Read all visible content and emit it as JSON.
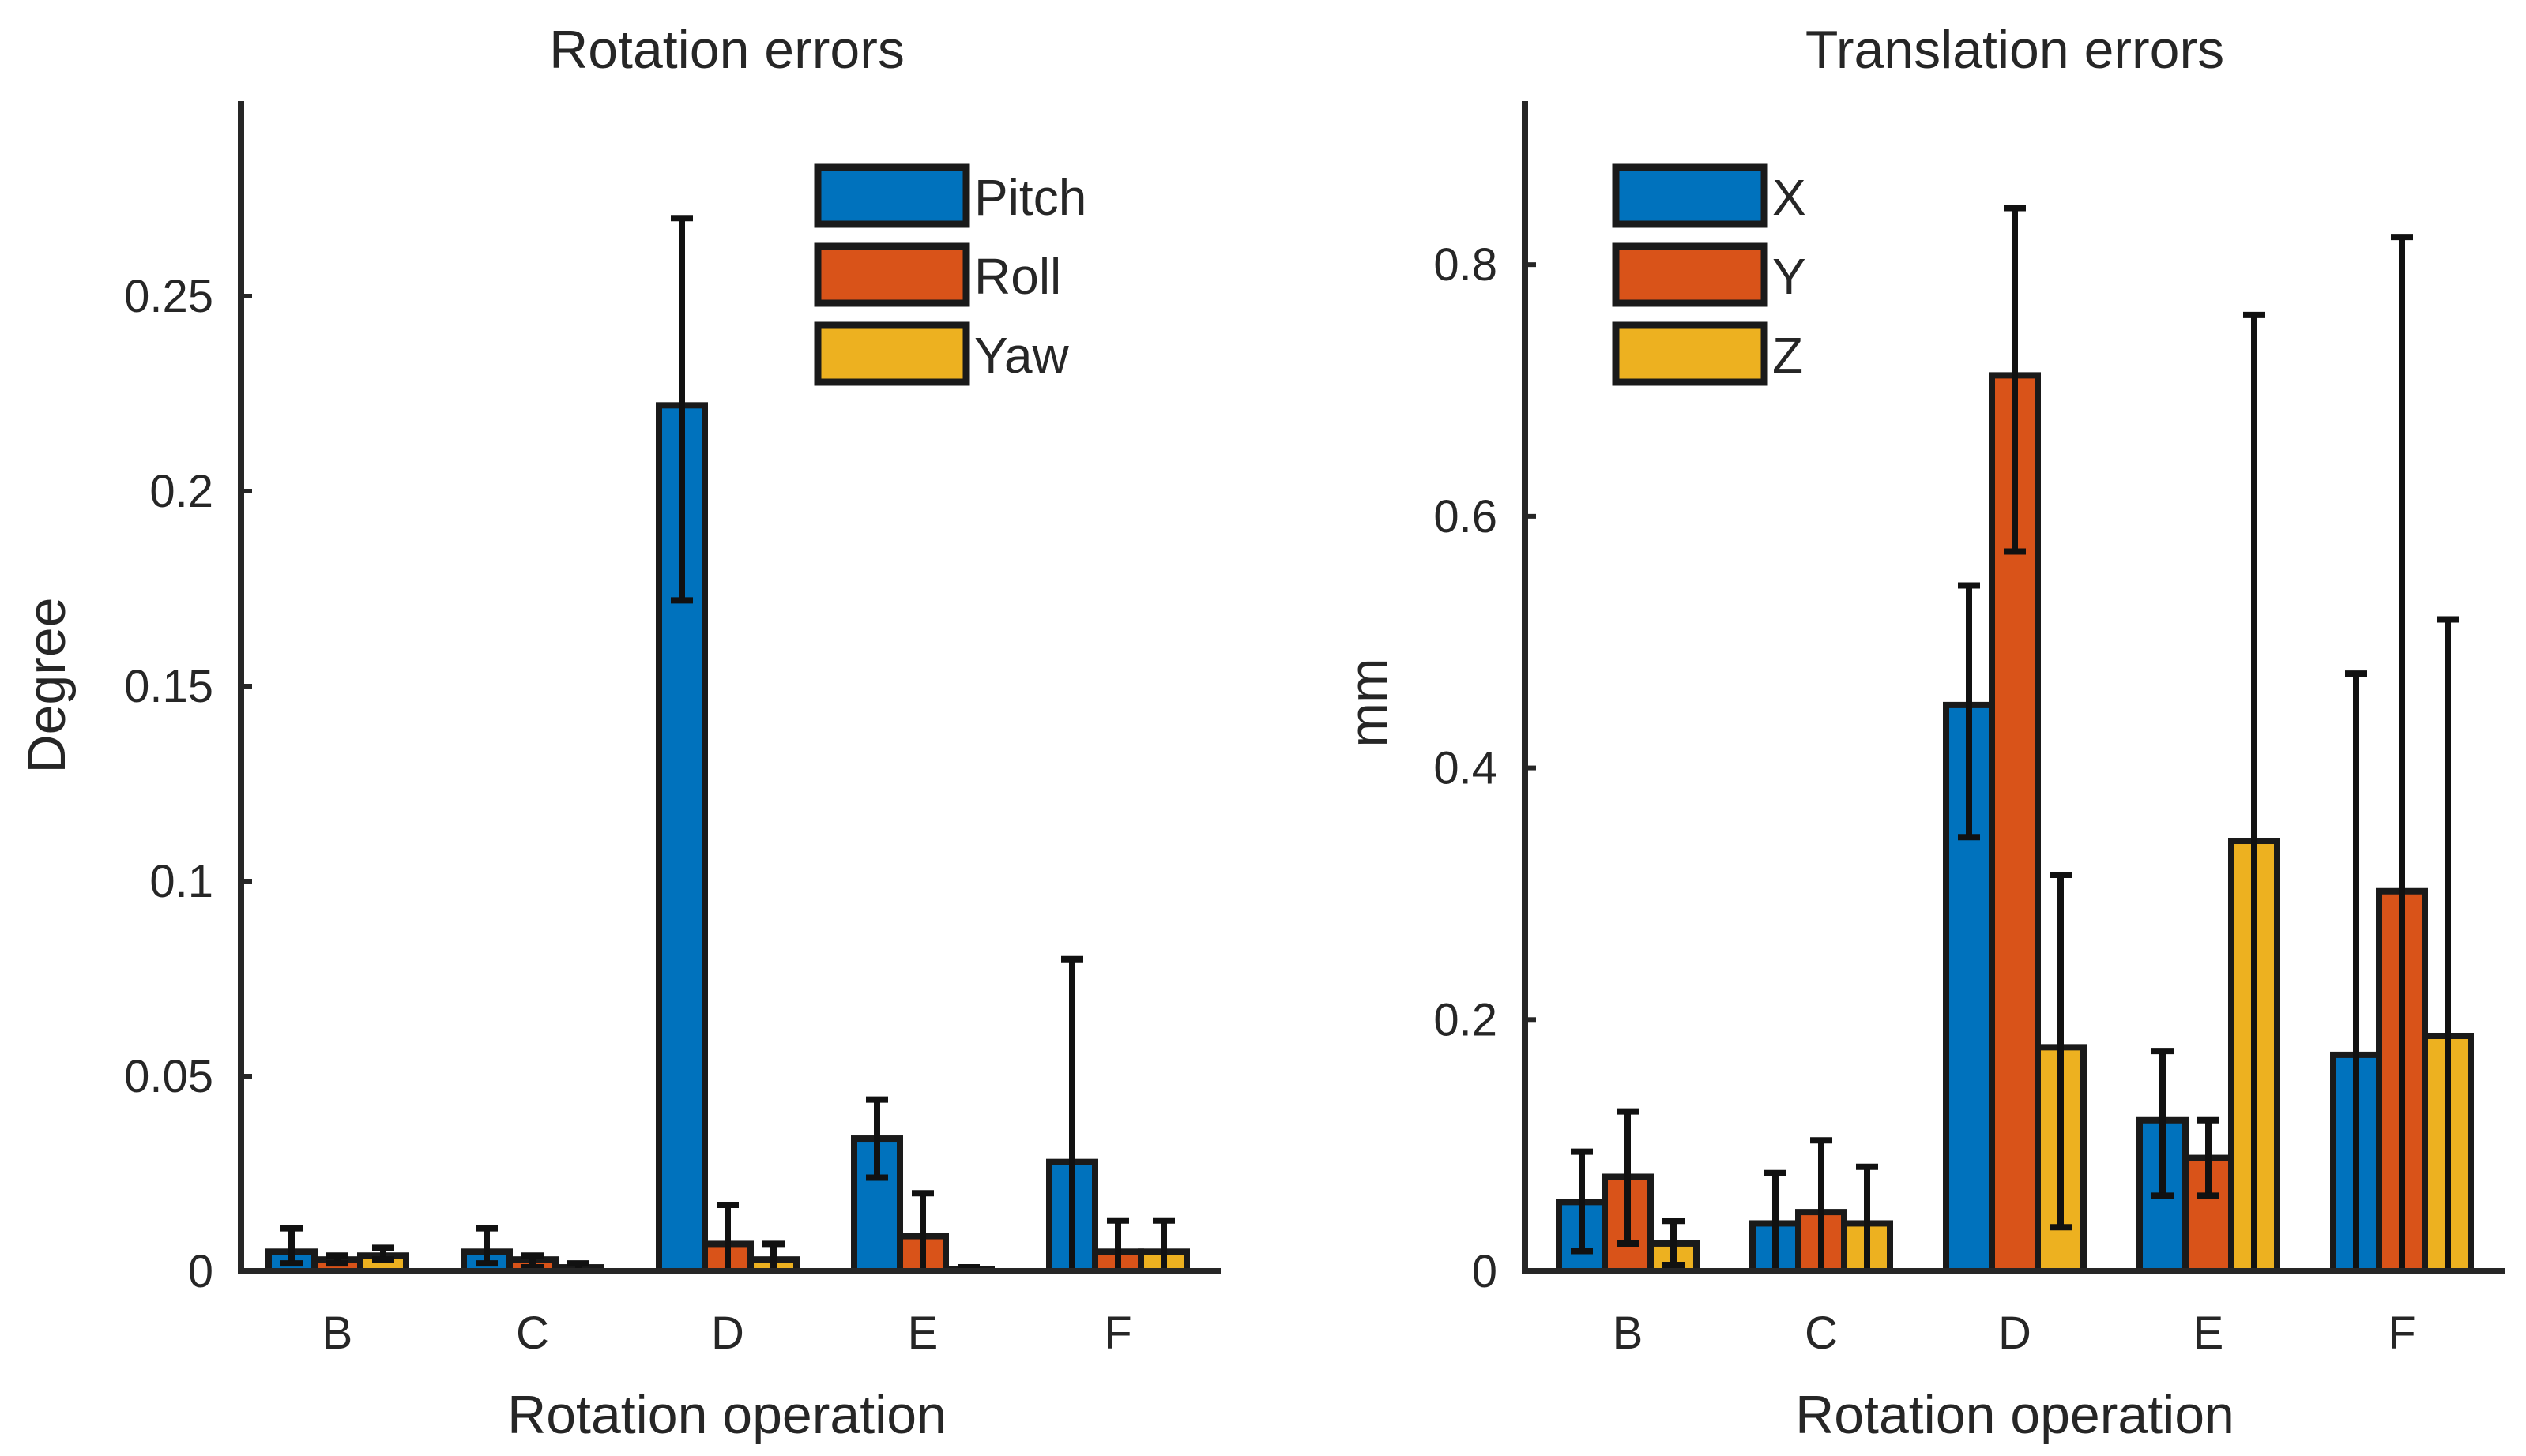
{
  "chart_data": [
    {
      "type": "bar",
      "title": "Rotation errors",
      "xlabel": "Rotation operation",
      "ylabel": "Degree",
      "categories": [
        "B",
        "C",
        "D",
        "E",
        "F"
      ],
      "ylim": [
        0,
        0.3
      ],
      "yticks": [
        0,
        0.05,
        0.1,
        0.15,
        0.2,
        0.25
      ],
      "ytick_labels": [
        "0",
        "0.05",
        "0.1",
        "0.15",
        "0.2",
        "0.25"
      ],
      "legend_position": "top-right",
      "series": [
        {
          "name": "Pitch",
          "color": "#0072BD",
          "values": [
            0.005,
            0.005,
            0.222,
            0.034,
            0.028
          ],
          "err_low": [
            0.002,
            0.002,
            0.172,
            0.024,
            0.0
          ],
          "err_high": [
            0.011,
            0.011,
            0.27,
            0.044,
            0.08
          ]
        },
        {
          "name": "Roll",
          "color": "#D95319",
          "values": [
            0.003,
            0.003,
            0.007,
            0.009,
            0.005
          ],
          "err_low": [
            0.002,
            0.001,
            0.0,
            0.0,
            0.0
          ],
          "err_high": [
            0.004,
            0.004,
            0.017,
            0.02,
            0.013
          ]
        },
        {
          "name": "Yaw",
          "color": "#EDB120",
          "values": [
            0.004,
            0.001,
            0.003,
            0.0005,
            0.005
          ],
          "err_low": [
            0.003,
            0.0,
            0.0,
            0.0,
            0.0
          ],
          "err_high": [
            0.006,
            0.002,
            0.007,
            0.001,
            0.013
          ]
        }
      ]
    },
    {
      "type": "bar",
      "title": "Translation errors",
      "xlabel": "Rotation operation",
      "ylabel": "mm",
      "categories": [
        "B",
        "C",
        "D",
        "E",
        "F"
      ],
      "ylim": [
        0,
        0.93
      ],
      "yticks": [
        0,
        0.2,
        0.4,
        0.6,
        0.8
      ],
      "ytick_labels": [
        "0",
        "0.2",
        "0.4",
        "0.6",
        "0.8"
      ],
      "legend_position": "top-left",
      "series": [
        {
          "name": "X",
          "color": "#0072BD",
          "values": [
            0.055,
            0.038,
            0.45,
            0.12,
            0.172
          ],
          "err_low": [
            0.016,
            0.0,
            0.345,
            0.06,
            0.0
          ],
          "err_high": [
            0.095,
            0.078,
            0.545,
            0.175,
            0.475
          ]
        },
        {
          "name": "Y",
          "color": "#D95319",
          "values": [
            0.075,
            0.047,
            0.712,
            0.09,
            0.302
          ],
          "err_low": [
            0.022,
            0.0,
            0.572,
            0.06,
            0.0
          ],
          "err_high": [
            0.127,
            0.104,
            0.845,
            0.12,
            0.822
          ]
        },
        {
          "name": "Z",
          "color": "#EDB120",
          "values": [
            0.022,
            0.038,
            0.178,
            0.342,
            0.187
          ],
          "err_low": [
            0.005,
            0.0,
            0.035,
            0.0,
            0.0
          ],
          "err_high": [
            0.04,
            0.083,
            0.315,
            0.76,
            0.518
          ]
        }
      ]
    }
  ]
}
